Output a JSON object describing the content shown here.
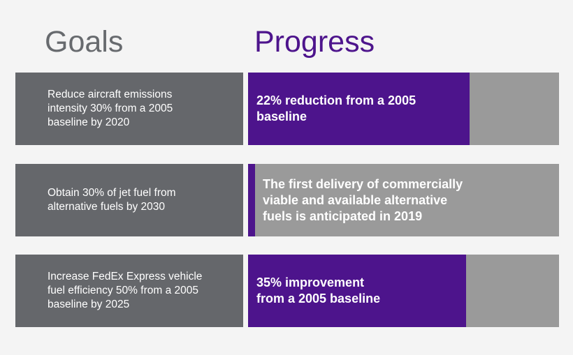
{
  "headings": {
    "goals": "Goals",
    "progress": "Progress"
  },
  "colors": {
    "goal_box": "#65676b",
    "progress_track": "#9a9a9a",
    "progress_fill": "#4d148c",
    "goals_heading": "#676a6e",
    "progress_heading": "#4d148c"
  },
  "rows": [
    {
      "goal": "Reduce aircraft emissions\nintensity 30% from a 2005\nbaseline by 2020",
      "progress_text": "22% reduction from a 2005\nbaseline",
      "progress_fraction": 0.713
    },
    {
      "goal": "Obtain 30% of jet fuel from\nalternative fuels by 2030",
      "progress_text": "The first delivery of commercially\nviable and available alternative\nfuels is anticipated in 2019",
      "progress_fraction": 0.022
    },
    {
      "goal": "Increase FedEx Express vehicle\nfuel efficiency 50% from a 2005\nbaseline by 2025",
      "progress_text": "35% improvement\nfrom a 2005 baseline",
      "progress_fraction": 0.7
    }
  ],
  "chart_data": {
    "type": "bar",
    "categories": [
      "Reduce aircraft emissions intensity 30% from a 2005 baseline by 2020",
      "Obtain 30% of jet fuel from alternative fuels by 2030",
      "Increase FedEx Express vehicle fuel efficiency 50% from a 2005 baseline by 2025"
    ],
    "values": [
      0.713,
      0.022,
      0.7
    ],
    "labels": [
      "22% reduction from a 2005 baseline",
      "The first delivery of commercially viable and available alternative fuels is anticipated in 2019",
      "35% improvement from a 2005 baseline"
    ],
    "orientation": "horizontal",
    "value_unit": "fraction of progress track filled"
  }
}
